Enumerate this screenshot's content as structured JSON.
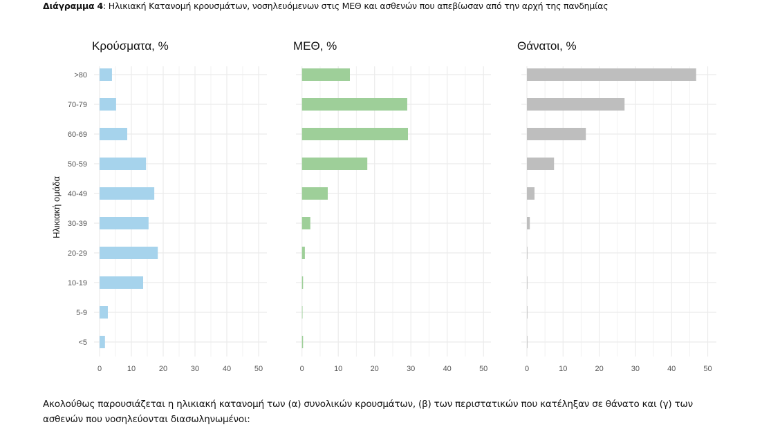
{
  "caption": {
    "label": "Διάγραμμα 4",
    "text": ": Ηλικιακή Κατανομή κρουσμάτων, νοσηλευόμενων στις ΜΕΘ και ασθενών που απεβίωσαν από την αρχή της πανδημίας"
  },
  "body_text": "Ακολούθως παρουσιάζεται η ηλικιακή κατανομή των (α) συνολικών κρουσμάτων, (β) των περιστατικών που κατέληξαν σε θάνατο και (γ) των ασθενών που νοσηλεύονται διασωληνωμένοι:",
  "chart_data": [
    {
      "type": "bar",
      "orientation": "horizontal",
      "title": "Κρούσματα, %",
      "ylabel": "Ηλικιακή ομάδα",
      "xlabel": "",
      "categories": [
        ">80",
        "70-79",
        "60-69",
        "50-59",
        "40-49",
        "30-39",
        "20-29",
        "10-19",
        "5-9",
        "<5"
      ],
      "values": [
        3.9,
        5.2,
        8.7,
        14.6,
        17.2,
        15.4,
        18.3,
        13.7,
        2.6,
        1.7
      ],
      "xlim": [
        0,
        52
      ],
      "xticks": [
        "0",
        "10",
        "20",
        "30",
        "40",
        "50"
      ],
      "grid": true,
      "color": "#a6d3ec"
    },
    {
      "type": "bar",
      "orientation": "horizontal",
      "title": "ΜΕΘ, %",
      "xlabel": "",
      "categories": [
        ">80",
        "70-79",
        "60-69",
        "50-59",
        "40-49",
        "30-39",
        "20-29",
        "10-19",
        "5-9",
        "<5"
      ],
      "values": [
        13.2,
        29.0,
        29.2,
        18.0,
        7.1,
        2.3,
        0.8,
        0.3,
        0.1,
        0.3
      ],
      "xlim": [
        0,
        52
      ],
      "xticks": [
        "0",
        "10",
        "20",
        "30",
        "40",
        "50"
      ],
      "grid": true,
      "color": "#9ecf99"
    },
    {
      "type": "bar",
      "orientation": "horizontal",
      "title": "Θάνατοι, %",
      "xlabel": "",
      "categories": [
        ">80",
        "70-79",
        "60-69",
        "50-59",
        "40-49",
        "30-39",
        "20-29",
        "10-19",
        "5-9",
        "<5"
      ],
      "values": [
        46.8,
        27.0,
        16.3,
        7.5,
        2.1,
        0.8,
        0.1,
        0.1,
        0.0,
        0.1
      ],
      "xlim": [
        0,
        52
      ],
      "xticks": [
        "0",
        "10",
        "20",
        "30",
        "40",
        "50"
      ],
      "grid": true,
      "color": "#bebebe"
    }
  ]
}
